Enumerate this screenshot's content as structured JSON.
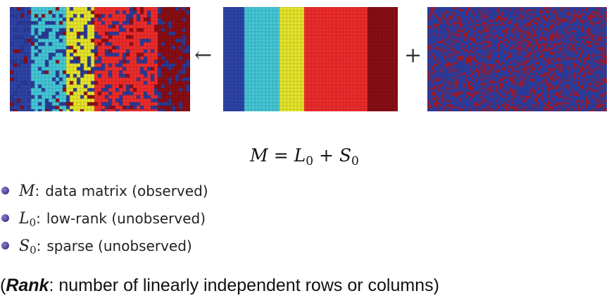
{
  "colors": {
    "blue": "#2f44a8",
    "cyan": "#45c8d8",
    "yellow": "#e6e62c",
    "red": "#ef2c2c",
    "dark_red": "#8a0f15",
    "sparse_bg": "#2b3a97",
    "sparse_fg": "#9b1a2b"
  },
  "operators": {
    "arrow": "←",
    "plus": "+"
  },
  "equation": {
    "lhs": "M",
    "eq": "=",
    "l": "L",
    "l_sub": "0",
    "plus": "+",
    "s": "S",
    "s_sub": "0"
  },
  "legend": [
    {
      "symbol": "M",
      "sub": "",
      "text": "data matrix (observed)"
    },
    {
      "symbol": "L",
      "sub": "0",
      "text": "low-rank (unobserved)"
    },
    {
      "symbol": "S",
      "sub": "0",
      "text": "sparse (unobserved)"
    }
  ],
  "note": {
    "open": "(",
    "term": "Rank",
    "rest": ": number of linearly independent rows or columns)"
  }
}
